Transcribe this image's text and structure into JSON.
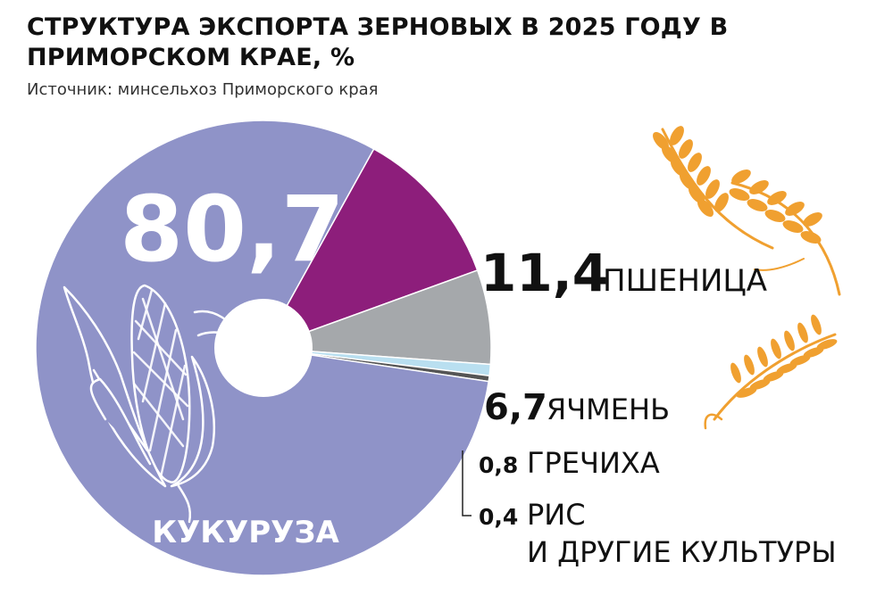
{
  "title": "СТРУКТУРА ЭКСПОРТА ЗЕРНОВЫХ В 2025 ГОДУ В ПРИМОРСКОМ КРАЕ, %",
  "source": "Источник: минсельхоз Приморского края",
  "colors": {
    "corn": "#8f93c8",
    "wheat": "#8d1e7b",
    "barley": "#a5a8ab",
    "buckwheat": "#b9dff0",
    "rice": "#555555",
    "grain_icon": "#f0a030"
  },
  "icons": [
    "corn-cob-icon",
    "wheat-ear-icon",
    "wheat-stalk-icon"
  ],
  "chart_data": {
    "type": "pie",
    "donut": true,
    "slices": [
      {
        "key": "corn",
        "label": "КУКУРУЗА",
        "value": 80.7,
        "value_label": "80,7"
      },
      {
        "key": "wheat",
        "label": "ПШЕНИЦА",
        "value": 11.4,
        "value_label": "11,4"
      },
      {
        "key": "barley",
        "label": "ЯЧМЕНЬ",
        "value": 6.7,
        "value_label": "6,7"
      },
      {
        "key": "buckwheat",
        "label": "ГРЕЧИХА",
        "value": 0.8,
        "value_label": "0,8"
      },
      {
        "key": "rice",
        "label_lines": [
          "РИС",
          "И ДРУГИЕ КУЛЬТУРЫ"
        ],
        "value": 0.4,
        "value_label": "0,4"
      }
    ]
  }
}
